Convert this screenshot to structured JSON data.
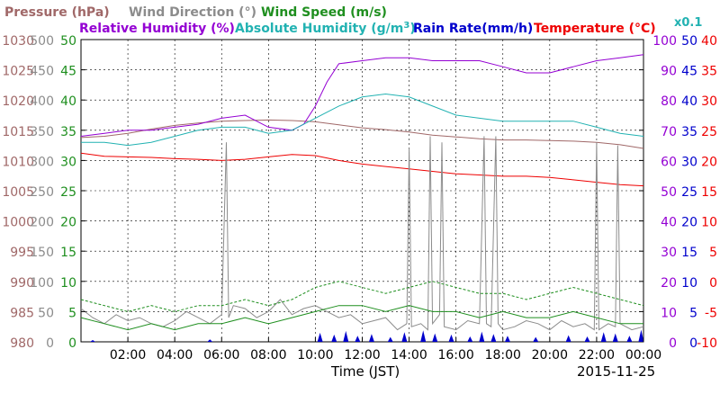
{
  "legend": {
    "pressure": {
      "label": "Pressure (hPa)",
      "color": "#a06868"
    },
    "wind_direction": {
      "label": "Wind Direction (°)",
      "color": "#8c8c8c"
    },
    "wind_speed": {
      "label": "Wind Speed (m/s)",
      "color": "#1f8f1f"
    },
    "relative_humidity": {
      "label": "Relative Humidity (%)",
      "color": "#9400d3"
    },
    "absolute_humidity_pre": {
      "label": "Absolute Humidity (g/m",
      "color": "#22b2b2"
    },
    "absolute_humidity_sup": {
      "label": "3"
    },
    "absolute_humidity_post": {
      "label": ")"
    },
    "rain_rate": {
      "label": "Rain Rate(mm/h)",
      "color": "#0000cc"
    },
    "temperature": {
      "label": "Temperature (°C)",
      "color": "#ee0000"
    },
    "absolute_humidity_scale": {
      "label": "x0.1",
      "color": "#22b2b2"
    }
  },
  "xlabel": "Time (JST)",
  "date": "2015-11-25",
  "chart_data": {
    "type": "line",
    "x_ticks": [
      "02:00",
      "04:00",
      "06:00",
      "08:00",
      "10:00",
      "12:00",
      "14:00",
      "16:00",
      "18:00",
      "20:00",
      "22:00",
      "00:00"
    ],
    "axes": {
      "pressure": {
        "ticks": [
          980,
          985,
          990,
          995,
          1000,
          1005,
          1010,
          1015,
          1020,
          1025,
          1030
        ],
        "color": "#a06868"
      },
      "wind_direction": {
        "ticks": [
          0,
          50,
          100,
          150,
          200,
          250,
          300,
          350,
          400,
          450,
          500
        ],
        "color": "#8c8c8c"
      },
      "wind_speed": {
        "ticks": [
          0,
          5,
          10,
          15,
          20,
          25,
          30,
          35,
          40,
          45,
          50
        ],
        "color": "#1f8f1f"
      },
      "relative_humidity": {
        "ticks": [
          0,
          10,
          20,
          30,
          40,
          50,
          60,
          70,
          80,
          90,
          100
        ],
        "color": "#9400d3"
      },
      "rain_rate": {
        "ticks": [
          0,
          5,
          10,
          15,
          20,
          25,
          30,
          35,
          40,
          45,
          50
        ],
        "color": "#0000cc"
      },
      "temperature": {
        "ticks": [
          -10,
          -5,
          0,
          5,
          10,
          15,
          20,
          25,
          30,
          35,
          40
        ],
        "color": "#ee0000"
      }
    },
    "grid": true,
    "series": [
      {
        "name": "Pressure (hPa)",
        "color": "#a06868",
        "axis": "pressure",
        "x": [
          0,
          1,
          2,
          3,
          4,
          5,
          6,
          7,
          8,
          9,
          10,
          11,
          12,
          13,
          14,
          15,
          16,
          17,
          18,
          19,
          20,
          21,
          22,
          23,
          24
        ],
        "y": [
          1013.8,
          1014.0,
          1014.5,
          1015.2,
          1015.8,
          1016.2,
          1016.5,
          1016.6,
          1016.7,
          1016.6,
          1016.4,
          1015.9,
          1015.4,
          1015.1,
          1014.7,
          1014.2,
          1013.9,
          1013.6,
          1013.4,
          1013.4,
          1013.3,
          1013.2,
          1013.0,
          1012.6,
          1012.0
        ]
      },
      {
        "name": "Relative Humidity (%)",
        "color": "#9400d3",
        "axis": "relative_humidity",
        "x": [
          0,
          1,
          2,
          3,
          4,
          5,
          6,
          7,
          8,
          9,
          9.5,
          10,
          10.5,
          11,
          12,
          13,
          14,
          15,
          16,
          17,
          18,
          19,
          20,
          21,
          22,
          23,
          24
        ],
        "y": [
          68,
          69,
          70,
          70,
          71,
          72,
          74,
          75,
          71,
          70,
          72,
          78,
          86,
          92,
          93,
          94,
          94,
          93,
          93,
          93,
          91,
          89,
          89,
          91,
          93,
          94,
          95
        ]
      },
      {
        "name": "Absolute Humidity (g/m3) x0.1",
        "color": "#22b2b2",
        "axis": "relative_humidity",
        "x": [
          0,
          1,
          2,
          3,
          4,
          5,
          6,
          7,
          8,
          9,
          10,
          11,
          12,
          13,
          14,
          15,
          16,
          17,
          18,
          19,
          20,
          21,
          22,
          23,
          24
        ],
        "y": [
          66,
          66,
          65,
          66,
          68,
          70,
          71,
          71,
          69,
          70,
          74,
          78,
          81,
          82,
          81,
          78,
          75,
          74,
          73,
          73,
          73,
          73,
          71,
          69,
          68
        ]
      },
      {
        "name": "Temperature (°C)",
        "color": "#ee0000",
        "axis": "temperature",
        "x": [
          0,
          1,
          2,
          3,
          4,
          5,
          6,
          7,
          8,
          9,
          10,
          11,
          12,
          13,
          14,
          15,
          16,
          17,
          18,
          19,
          20,
          21,
          22,
          23,
          24
        ],
        "y": [
          21.2,
          20.7,
          20.6,
          20.5,
          20.3,
          20.2,
          20.0,
          20.2,
          20.6,
          21.0,
          20.8,
          20.0,
          19.4,
          19.0,
          18.6,
          18.2,
          17.8,
          17.6,
          17.4,
          17.4,
          17.2,
          16.8,
          16.4,
          16.0,
          15.8
        ]
      },
      {
        "name": "Wind Direction (°)",
        "color": "#8c8c8c",
        "axis": "wind_direction",
        "x": [
          0,
          0.5,
          1,
          1.5,
          2,
          2.5,
          3,
          3.5,
          4,
          4.5,
          5,
          5.5,
          6,
          6.2,
          6.3,
          6.5,
          7,
          7.5,
          8,
          8.5,
          9,
          9.5,
          10,
          10.5,
          11,
          11.5,
          12,
          12.5,
          13,
          13.5,
          13.9,
          14,
          14.1,
          14.5,
          14.8,
          14.9,
          15,
          15.3,
          15.4,
          15.5,
          16,
          16.5,
          17,
          17.2,
          17.3,
          17.5,
          17.7,
          17.8,
          18,
          18.5,
          19,
          19.5,
          20,
          20.5,
          21,
          21.5,
          21.9,
          22,
          22.1,
          22.5,
          22.8,
          22.9,
          23,
          23.5,
          24
        ],
        "y": [
          55,
          40,
          30,
          45,
          35,
          40,
          30,
          25,
          35,
          50,
          40,
          30,
          45,
          330,
          40,
          60,
          55,
          40,
          50,
          70,
          45,
          55,
          60,
          50,
          40,
          45,
          30,
          35,
          40,
          20,
          30,
          320,
          25,
          30,
          20,
          340,
          30,
          45,
          330,
          25,
          20,
          35,
          30,
          340,
          30,
          25,
          340,
          30,
          20,
          25,
          35,
          30,
          20,
          35,
          25,
          30,
          20,
          330,
          20,
          30,
          25,
          325,
          30,
          20,
          25
        ]
      },
      {
        "name": "Wind Speed (m/s)",
        "color": "#1f8f1f",
        "axis": "wind_speed",
        "x": [
          0,
          1,
          2,
          3,
          4,
          5,
          6,
          7,
          8,
          9,
          10,
          11,
          12,
          13,
          14,
          15,
          16,
          17,
          18,
          19,
          20,
          21,
          22,
          23,
          24
        ],
        "y": [
          4,
          3,
          2,
          3,
          2,
          3,
          3,
          4,
          3,
          4,
          5,
          6,
          6,
          5,
          6,
          5,
          5,
          4,
          5,
          4,
          4,
          5,
          4,
          3,
          3
        ]
      },
      {
        "name": "Wind Speed max (m/s)",
        "color": "#1f8f1f",
        "axis": "wind_speed",
        "x": [
          0,
          1,
          2,
          3,
          4,
          5,
          6,
          7,
          8,
          9,
          10,
          11,
          12,
          13,
          14,
          15,
          16,
          17,
          18,
          19,
          20,
          21,
          22,
          23,
          24
        ],
        "y": [
          7,
          6,
          5,
          6,
          5,
          6,
          6,
          7,
          6,
          7,
          9,
          10,
          9,
          8,
          9,
          10,
          9,
          8,
          8,
          7,
          8,
          9,
          8,
          7,
          6
        ]
      },
      {
        "name": "Rain Rate(mm/h)",
        "color": "#0000cc",
        "axis": "rain_rate",
        "x": [
          0.5,
          5.5,
          10.2,
          10.8,
          11.3,
          11.8,
          12.4,
          13.2,
          13.8,
          14.6,
          15.1,
          15.8,
          16.6,
          17.1,
          17.6,
          18.2,
          19.4,
          20.8,
          21.6,
          22.3,
          22.8,
          23.4,
          23.9
        ],
        "y": [
          0.3,
          0.4,
          1.5,
          1.2,
          1.8,
          1.0,
          1.3,
          0.8,
          1.6,
          1.9,
          1.4,
          1.2,
          0.9,
          1.7,
          1.3,
          1.0,
          0.8,
          1.1,
          0.9,
          1.6,
          1.4,
          1.0,
          2.0
        ]
      }
    ]
  }
}
